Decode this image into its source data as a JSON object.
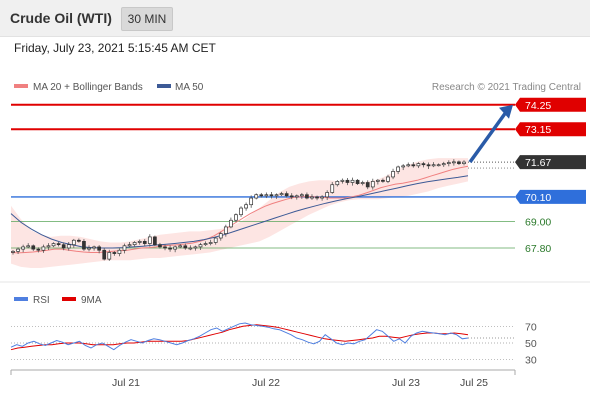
{
  "header": {
    "title": "Crude Oil (WTI)",
    "interval": "30 MIN",
    "datetime": "Friday, July 23, 2021 5:15:45 AM CET"
  },
  "legend": {
    "ma20": "MA 20 + Bollinger Bands",
    "ma50": "MA 50",
    "credit": "Research © 2021 Trading Central",
    "rsi": "RSI",
    "rsi_ma": "9MA"
  },
  "colors": {
    "ma20": "#f08080",
    "ma50": "#3d5a96",
    "bollinger_fill": "#fde5e3",
    "resistance": "#e00000",
    "support": "#2f6fdb",
    "target": "#2a5ba8",
    "current": "#333333",
    "minor_level": "#5aa55a",
    "rsi": "#4f7fe0",
    "rsi_ma": "#e00000"
  },
  "chart_data": [
    {
      "type": "candlestick",
      "ylim": [
        66.9,
        74.6
      ],
      "x_ticks": [
        "Jul 21",
        "Jul 22",
        "Jul 23",
        "Jul 25"
      ],
      "levels": [
        {
          "label": "74.25",
          "value": 74.25,
          "kind": "resistance"
        },
        {
          "label": "73.15",
          "value": 73.15,
          "kind": "resistance"
        },
        {
          "label": "71.67",
          "value": 71.67,
          "kind": "current"
        },
        {
          "label": "70.10",
          "value": 70.1,
          "kind": "support"
        },
        {
          "label": "69.00",
          "value": 69.0,
          "kind": "minor"
        },
        {
          "label": "67.80",
          "value": 67.8,
          "kind": "minor"
        }
      ],
      "close": [
        67.65,
        67.75,
        67.85,
        67.9,
        67.75,
        67.7,
        67.85,
        67.9,
        68.0,
        67.95,
        67.8,
        67.95,
        68.15,
        68.1,
        67.75,
        67.8,
        67.85,
        67.7,
        67.3,
        67.6,
        67.55,
        67.7,
        67.9,
        67.95,
        68.05,
        68.1,
        68.0,
        68.3,
        67.95,
        67.85,
        67.8,
        67.75,
        67.85,
        67.9,
        67.8,
        67.8,
        67.85,
        67.95,
        68.0,
        68.05,
        68.25,
        68.45,
        68.75,
        69.05,
        69.3,
        69.6,
        69.75,
        70.05,
        70.2,
        70.15,
        70.2,
        70.15,
        70.2,
        70.25,
        70.15,
        70.1,
        70.15,
        70.2,
        70.05,
        70.1,
        70.05,
        70.1,
        70.3,
        70.65,
        70.8,
        70.85,
        70.75,
        70.85,
        70.7,
        70.75,
        70.55,
        70.8,
        70.85,
        70.8,
        71.0,
        71.25,
        71.45,
        71.5,
        71.55,
        71.5,
        71.6,
        71.55,
        71.5,
        71.55,
        71.55,
        71.6,
        71.65,
        71.68,
        71.6,
        71.67
      ],
      "ma20": [
        67.6,
        67.58,
        67.6,
        67.62,
        67.65,
        67.7,
        67.75,
        67.75,
        67.7,
        67.65,
        67.62,
        67.6,
        67.6,
        67.62,
        67.65,
        67.68,
        67.7,
        67.75,
        67.8,
        67.82,
        67.85,
        67.9,
        67.92,
        67.95,
        67.98,
        68.02,
        68.1,
        68.2,
        68.35,
        68.55,
        68.75,
        68.95,
        69.15,
        69.35,
        69.52,
        69.68,
        69.8,
        69.9,
        70.0,
        70.08,
        70.1,
        70.12,
        70.1,
        70.08,
        70.05,
        70.05,
        70.05,
        70.1,
        70.18,
        70.28,
        70.4,
        70.52,
        70.6,
        70.68,
        70.72,
        70.78,
        70.85,
        70.95,
        71.05,
        71.15,
        71.25,
        71.35,
        71.42,
        71.48
      ],
      "ma50": [
        69.35,
        68.95,
        68.65,
        68.4,
        68.2,
        68.05,
        67.95,
        67.85,
        67.82,
        67.8,
        67.8,
        67.82,
        67.85,
        67.88,
        67.92,
        67.96,
        68.0,
        68.05,
        68.1,
        68.18,
        68.28,
        68.4,
        68.55,
        68.7,
        68.85,
        69.0,
        69.15,
        69.3,
        69.45,
        69.58,
        69.7,
        69.82,
        69.92,
        70.02,
        70.1,
        70.2,
        70.3,
        70.4,
        70.5,
        70.6,
        70.7,
        70.78,
        70.85,
        70.92,
        70.98,
        71.05
      ],
      "bb_upper": [
        69.7,
        69.1,
        68.6,
        68.4,
        68.3,
        68.35,
        68.35,
        68.3,
        68.2,
        68.1,
        68.05,
        68.05,
        68.1,
        68.2,
        68.3,
        68.4,
        68.45,
        68.5,
        68.55,
        68.55,
        68.6,
        68.65,
        68.75,
        68.95,
        69.25,
        69.6,
        69.95,
        70.3,
        70.55,
        70.7,
        70.8,
        70.85,
        70.85,
        70.8,
        70.8,
        70.75,
        70.8,
        70.9,
        71.1,
        71.35,
        71.55,
        71.7,
        71.8,
        71.85,
        71.85,
        71.85,
        71.85
      ],
      "bb_lower": [
        67.1,
        66.95,
        66.9,
        66.9,
        66.95,
        67.0,
        67.05,
        67.1,
        67.15,
        67.2,
        67.25,
        67.25,
        67.25,
        67.3,
        67.35,
        67.35,
        67.4,
        67.45,
        67.5,
        67.55,
        67.6,
        67.7,
        67.8,
        67.9,
        68.0,
        68.1,
        68.3,
        68.55,
        68.8,
        69.05,
        69.3,
        69.5,
        69.7,
        69.85,
        69.95,
        70.0,
        70.0,
        70.0,
        70.05,
        70.1,
        70.15,
        70.25,
        70.35,
        70.5,
        70.6,
        70.7,
        70.8
      ]
    },
    {
      "type": "line",
      "ylim": [
        20,
        80
      ],
      "y_ticks": [
        "70",
        "50",
        "30"
      ],
      "series": [
        {
          "name": "RSI",
          "values": [
            45,
            48,
            46,
            50,
            52,
            49,
            47,
            50,
            53,
            51,
            48,
            50,
            52,
            47,
            44,
            48,
            50,
            46,
            42,
            47,
            51,
            54,
            52,
            50,
            53,
            55,
            54,
            52,
            50,
            48,
            50,
            53,
            55,
            58,
            62,
            66,
            68,
            64,
            67,
            70,
            73,
            74,
            72,
            71,
            70,
            69,
            67,
            66,
            63,
            60,
            56,
            54,
            51,
            49,
            52,
            60,
            55,
            50,
            48,
            50,
            49,
            52,
            54,
            60,
            66,
            64,
            58,
            52,
            55,
            50,
            58,
            62,
            64,
            63,
            62,
            61,
            60,
            62,
            60,
            55,
            56
          ]
        },
        {
          "name": "9MA",
          "values": [
            42,
            44,
            45,
            46,
            47,
            48,
            48,
            49,
            50,
            50,
            50,
            49,
            48,
            48,
            48,
            48,
            49,
            50,
            50,
            51,
            52,
            52,
            52,
            52,
            52,
            52,
            53,
            55,
            57,
            59,
            61,
            63,
            66,
            68,
            70,
            71,
            72,
            71,
            70,
            69,
            67,
            65,
            63,
            61,
            59,
            57,
            55,
            54,
            53,
            52,
            53,
            54,
            55,
            56,
            58,
            58,
            57,
            56,
            58,
            60,
            61,
            62,
            62,
            61,
            61,
            62,
            61,
            60
          ]
        }
      ]
    }
  ]
}
